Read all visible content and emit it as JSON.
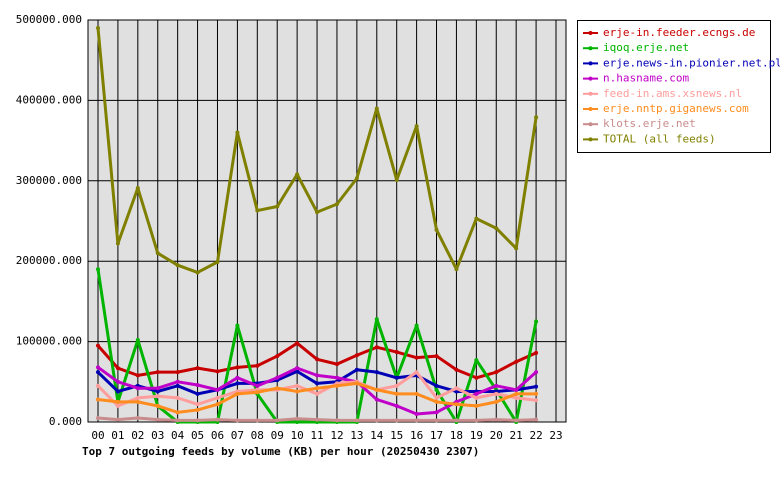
{
  "chart_data": {
    "type": "line",
    "title": "Top 7 outgoing feeds by volume (KB) per hour (20250430 2307)",
    "categories": [
      "00",
      "01",
      "02",
      "03",
      "04",
      "05",
      "06",
      "07",
      "08",
      "09",
      "10",
      "11",
      "12",
      "13",
      "14",
      "15",
      "16",
      "17",
      "18",
      "19",
      "20",
      "21",
      "22",
      "23"
    ],
    "ylim": [
      0,
      500000
    ],
    "yticks": [
      {
        "value": 0,
        "label": "0.000"
      },
      {
        "value": 100000,
        "label": "100000.000"
      },
      {
        "value": 200000,
        "label": "200000.000"
      },
      {
        "value": 300000,
        "label": "300000.000"
      },
      {
        "value": 400000,
        "label": "400000.000"
      },
      {
        "value": 500000,
        "label": "500000.000"
      }
    ],
    "grid": true,
    "legend": "right",
    "series": [
      {
        "name": "erje-in.feeder.ecngs.de",
        "color": "#c80000",
        "values": [
          95000,
          67000,
          58000,
          62000,
          62000,
          67000,
          63000,
          68000,
          70000,
          82000,
          98000,
          78000,
          72000,
          83000,
          93000,
          87000,
          80000,
          82000,
          65000,
          55000,
          62000,
          75000,
          86000,
          null
        ]
      },
      {
        "name": "iqoq.erje.net",
        "color": "#00b400",
        "values": [
          190000,
          25000,
          102000,
          20000,
          0,
          0,
          0,
          120000,
          35000,
          0,
          0,
          0,
          0,
          0,
          128000,
          55000,
          120000,
          40000,
          0,
          77000,
          40000,
          0,
          125000,
          null
        ]
      },
      {
        "name": "erje.news-in.pionier.net.pl",
        "color": "#0000b4",
        "values": [
          62000,
          38000,
          45000,
          38000,
          45000,
          35000,
          40000,
          48000,
          48000,
          52000,
          63000,
          48000,
          50000,
          65000,
          62000,
          55000,
          58000,
          45000,
          38000,
          38000,
          38000,
          40000,
          44000,
          null
        ]
      },
      {
        "name": "n.hasname.com",
        "color": "#c000c8",
        "values": [
          68000,
          50000,
          42000,
          42000,
          50000,
          46000,
          40000,
          55000,
          45000,
          55000,
          67000,
          58000,
          55000,
          50000,
          28000,
          20000,
          10000,
          12000,
          25000,
          35000,
          45000,
          40000,
          62000,
          null
        ]
      },
      {
        "name": "feed-in.ams.xsnews.nl",
        "color": "#ff9c9c",
        "values": [
          45000,
          20000,
          30000,
          32000,
          30000,
          22000,
          30000,
          38000,
          40000,
          40000,
          45000,
          35000,
          48000,
          50000,
          40000,
          45000,
          62000,
          30000,
          42000,
          30000,
          35000,
          30000,
          27000,
          null
        ]
      },
      {
        "name": "erje.nntp.giganews.com",
        "color": "#ff8c1e",
        "values": [
          28000,
          25000,
          25000,
          20000,
          12000,
          15000,
          22000,
          35000,
          37000,
          42000,
          38000,
          42000,
          45000,
          48000,
          40000,
          35000,
          35000,
          25000,
          22000,
          20000,
          25000,
          35000,
          35000,
          null
        ]
      },
      {
        "name": "klots.erje.net",
        "color": "#c88c8c",
        "values": [
          5000,
          3000,
          5000,
          3000,
          2000,
          2000,
          3000,
          2000,
          2000,
          2000,
          4000,
          3000,
          2000,
          2000,
          2000,
          2000,
          2000,
          2000,
          2000,
          2000,
          3000,
          2000,
          3000,
          null
        ]
      },
      {
        "name": "TOTAL (all feeds)",
        "color": "#808000",
        "values": [
          490000,
          222000,
          291000,
          210000,
          195000,
          186000,
          199000,
          360000,
          263000,
          268000,
          308000,
          261000,
          271000,
          303000,
          390000,
          301000,
          368000,
          239000,
          190000,
          253000,
          241000,
          216000,
          379000,
          null
        ]
      }
    ]
  }
}
